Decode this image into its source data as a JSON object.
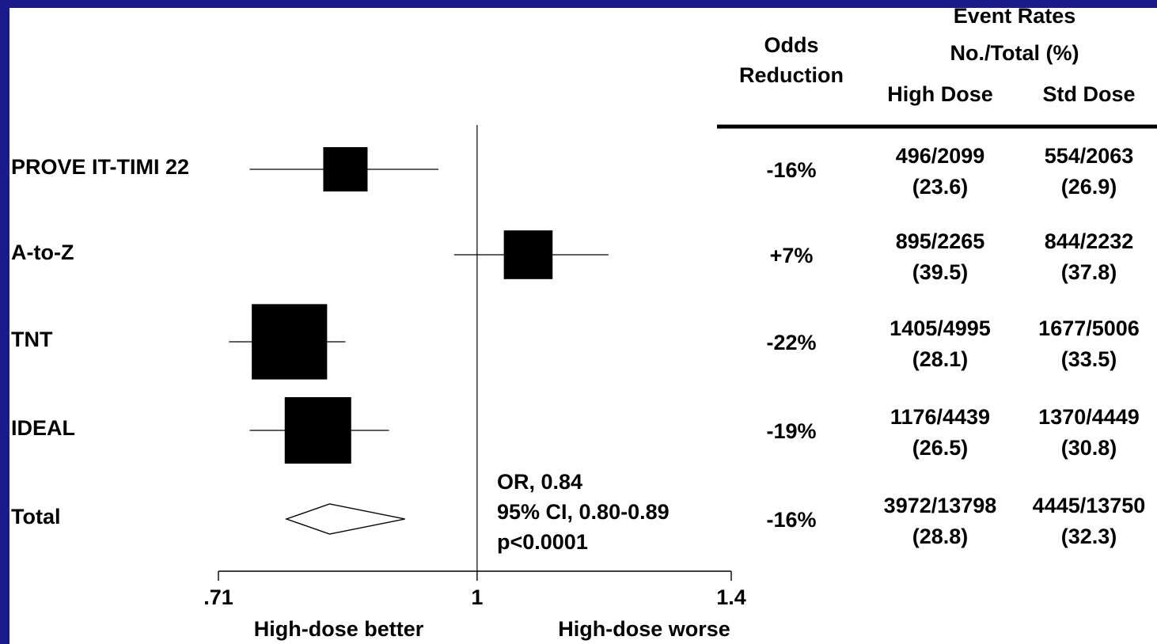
{
  "chart_data": {
    "type": "forest",
    "x_axis": {
      "scale": "log",
      "ticks": [
        0.71,
        1,
        1.4
      ],
      "tick_labels": [
        ".71",
        "1",
        "1.4"
      ],
      "left_label": "High-dose better",
      "right_label": "High-dose worse",
      "reference_line": 1
    },
    "studies": [
      {
        "name": "PROVE IT-TIMI 22",
        "or": 0.84,
        "ci": [
          0.74,
          0.95
        ],
        "weight": 1.0,
        "odds_reduction": "-16%",
        "high_dose": "496/2099",
        "high_dose_pct": "(23.6)",
        "std_dose": "554/2063",
        "std_dose_pct": "(26.9)"
      },
      {
        "name": "A-to-Z",
        "or": 1.07,
        "ci": [
          0.97,
          1.19
        ],
        "weight": 1.1,
        "odds_reduction": "+7%",
        "high_dose": "895/2265",
        "high_dose_pct": "(39.5)",
        "std_dose": "844/2232",
        "std_dose_pct": "(37.8)"
      },
      {
        "name": "TNT",
        "or": 0.78,
        "ci": [
          0.72,
          0.84
        ],
        "weight": 1.7,
        "odds_reduction": "-22%",
        "high_dose": "1405/4995",
        "high_dose_pct": "(28.1)",
        "std_dose": "1677/5006",
        "std_dose_pct": "(33.5)"
      },
      {
        "name": "IDEAL",
        "or": 0.81,
        "ci": [
          0.74,
          0.89
        ],
        "weight": 1.5,
        "odds_reduction": "-19%",
        "high_dose": "1176/4439",
        "high_dose_pct": "(26.5)",
        "std_dose": "1370/4449",
        "std_dose_pct": "(30.8)"
      }
    ],
    "total": {
      "name": "Total",
      "or": 0.84,
      "ci": [
        0.8,
        0.89
      ],
      "odds_reduction": "-16%",
      "high_dose": "3972/13798",
      "high_dose_pct": "(28.8)",
      "std_dose": "4445/13750",
      "std_dose_pct": "(32.3)"
    },
    "summary_text": [
      "OR, 0.84",
      "95% CI, 0.80-0.89",
      "p<0.0001"
    ],
    "columns": {
      "odds_reduction": [
        "Odds",
        "Reduction"
      ],
      "event_rates_title": [
        "Event Rates",
        "No./Total (%)"
      ],
      "high_dose": "High Dose",
      "std_dose": "Std Dose"
    }
  },
  "colors": {
    "frame": "#1a1a8c",
    "background": "#ffffff",
    "ink": "#000000"
  }
}
